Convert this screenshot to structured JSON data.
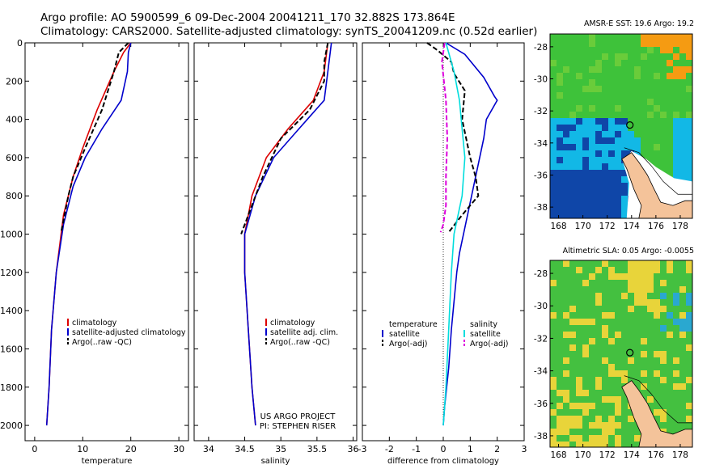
{
  "header": {
    "line1": "Argo profile: AO 5900599_6 09-Dec-2004 20041211_170 32.882S 173.864E",
    "line2": "Climatology: CARS2000. Satellite-adjusted climatology: synTS_20041209.nc (0.52d earlier)"
  },
  "chart_data": [
    {
      "type": "line",
      "xlabel": "temperature",
      "ylabel": "",
      "xlim": [
        -2,
        32
      ],
      "ylim": [
        2080,
        0
      ],
      "y_reversed": true,
      "xticks": [
        "0",
        "10",
        "20",
        "30"
      ],
      "yticks": [
        "0",
        "200",
        "400",
        "600",
        "800",
        "1000",
        "1200",
        "1400",
        "1600",
        "1800",
        "2000"
      ],
      "legend_position": "lower-left",
      "series": [
        {
          "name": "climatology",
          "color": "#dd0000",
          "style": "solid",
          "x": [
            20,
            18.5,
            16.5,
            13,
            10,
            8,
            6,
            4.5,
            3.5,
            3,
            2.5
          ],
          "y": [
            0,
            50,
            150,
            350,
            550,
            700,
            900,
            1200,
            1500,
            1800,
            2000
          ]
        },
        {
          "name": "satellite-adjusted climatology",
          "color": "#0000cc",
          "style": "solid",
          "x": [
            20,
            19.5,
            19.3,
            18,
            14,
            10.5,
            8,
            6,
            4.5,
            3.5,
            3,
            2.5
          ],
          "y": [
            0,
            50,
            150,
            300,
            450,
            600,
            750,
            950,
            1200,
            1500,
            1800,
            2000
          ]
        },
        {
          "name": "Argo(..raw -QC)",
          "color": "#000000",
          "style": "dashed",
          "x": [
            19.5,
            17.5,
            16.5,
            14,
            10.5,
            8,
            7,
            5.5
          ],
          "y": [
            0,
            50,
            150,
            350,
            550,
            700,
            800,
            990
          ]
        }
      ]
    },
    {
      "type": "line",
      "xlabel": "salinity",
      "ylabel": "",
      "xlim": [
        33.8,
        36.05
      ],
      "ylim": [
        2080,
        0
      ],
      "y_reversed": true,
      "xticks": [
        "34",
        "34.5",
        "35",
        "35.5",
        "36"
      ],
      "legend_position": "lower-right",
      "series": [
        {
          "name": "climatology",
          "color": "#dd0000",
          "style": "solid",
          "x": [
            35.65,
            35.6,
            35.45,
            35.1,
            34.8,
            34.6,
            34.5,
            34.5,
            34.55,
            34.6,
            34.65
          ],
          "y": [
            0,
            150,
            300,
            450,
            600,
            800,
            1000,
            1200,
            1500,
            1800,
            2000
          ]
        },
        {
          "name": "satellite adj. clim.",
          "color": "#0000cc",
          "style": "solid",
          "x": [
            35.7,
            35.65,
            35.6,
            35.25,
            34.9,
            34.65,
            34.5,
            34.5,
            34.55,
            34.6,
            34.65
          ],
          "y": [
            0,
            150,
            300,
            450,
            600,
            800,
            1000,
            1200,
            1500,
            1800,
            2000
          ]
        },
        {
          "name": "Argo(..raw -QC)",
          "color": "#000000",
          "style": "dashed",
          "x": [
            35.65,
            35.6,
            35.6,
            35.4,
            35.0,
            34.75,
            34.55,
            34.45
          ],
          "y": [
            0,
            100,
            200,
            350,
            500,
            700,
            900,
            1000
          ]
        }
      ]
    },
    {
      "type": "line",
      "xlabel": "difference from climatology",
      "ylabel": "",
      "xlim": [
        -3,
        3
      ],
      "ylim": [
        2080,
        0
      ],
      "y_reversed": true,
      "xticks": [
        "-3",
        "-2",
        "-1",
        "0",
        "1",
        "2",
        "3"
      ],
      "legend": {
        "temperature_header": "temperature",
        "salinity_header": "salinity",
        "temperature_items": [
          "satellite",
          "Argo(-adj)"
        ],
        "salinity_items": [
          "satellite",
          "Argo(-adj)"
        ]
      },
      "series": [
        {
          "name": "temperature satellite",
          "color": "#0000cc",
          "style": "solid",
          "x": [
            0.1,
            0.8,
            1.5,
            1.9,
            2.0,
            1.6,
            1.5,
            1.2,
            0.9,
            0.6,
            0.5,
            0.3,
            0.2,
            0.05,
            0.0
          ],
          "y": [
            0,
            60,
            180,
            280,
            300,
            400,
            500,
            700,
            900,
            1100,
            1200,
            1500,
            1700,
            1900,
            2000
          ]
        },
        {
          "name": "temperature Argo(-adj)",
          "color": "#000000",
          "style": "dashed",
          "x": [
            -0.6,
            -0.2,
            0.3,
            0.4,
            0.8,
            0.7,
            1.0,
            1.2,
            1.3,
            0.7,
            0.2
          ],
          "y": [
            0,
            40,
            100,
            160,
            250,
            400,
            600,
            700,
            800,
            900,
            990
          ]
        },
        {
          "name": "salinity satellite",
          "color": "#00dddd",
          "style": "solid",
          "x": [
            0.1,
            0.4,
            0.6,
            0.7,
            0.8,
            0.7,
            0.4,
            0.3,
            0.2,
            0.1,
            0.0
          ],
          "y": [
            0,
            150,
            300,
            450,
            600,
            800,
            1000,
            1200,
            1500,
            1800,
            2000
          ]
        },
        {
          "name": "salinity Argo(-adj)",
          "color": "#dd00dd",
          "style": "dashed",
          "x": [
            0.05,
            -0.05,
            0.1,
            0.15,
            0.1,
            0.1,
            0.0,
            -0.1
          ],
          "y": [
            0,
            100,
            300,
            500,
            700,
            850,
            950,
            990
          ]
        }
      ]
    }
  ],
  "annotation": {
    "line1": "US ARGO PROJECT",
    "line2": "PI: STEPHEN RISER"
  },
  "maps": [
    {
      "title": "AMSR-E SST: 19.6 Argo: 19.2",
      "xticks": [
        "168",
        "170",
        "172",
        "174",
        "176",
        "178"
      ],
      "yticks": [
        "-28",
        "-30",
        "-32",
        "-34",
        "-36",
        "-38"
      ],
      "marker": {
        "lon": 173.86,
        "lat": -32.88
      }
    },
    {
      "title": "Altimetric SLA: 0.05 Argo: -0.0055",
      "xticks": [
        "168",
        "170",
        "172",
        "174",
        "176",
        "178"
      ],
      "yticks": [
        "-28",
        "-30",
        "-32",
        "-34",
        "-36",
        "-38"
      ],
      "marker": {
        "lon": 173.86,
        "lat": -32.88
      }
    }
  ],
  "colors": {
    "red": "#dd0000",
    "blue": "#0000cc",
    "black": "#000000",
    "cyan": "#00dddd",
    "magenta": "#dd00dd",
    "land": "#f4c39a",
    "map_no_data": "#ffffff",
    "sst_warm": "#f59b12",
    "sst_mid": "#3ec23a",
    "sst_cool": "#12b8e6",
    "sst_cold": "#0f46a8",
    "sla_high": "#e8d43a",
    "sla_mid": "#44c040",
    "sla_low": "#2aa8d0"
  }
}
